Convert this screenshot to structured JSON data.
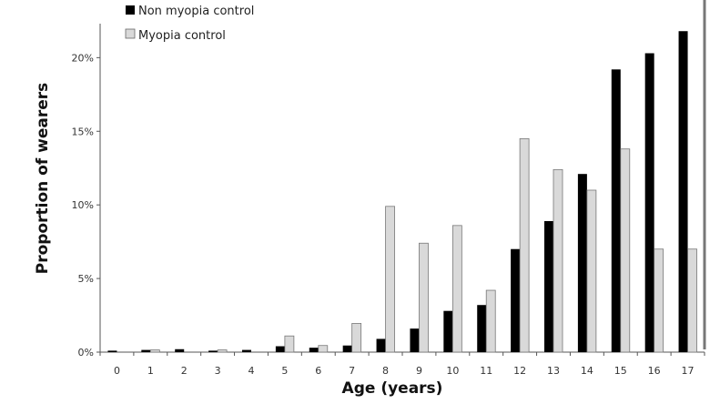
{
  "chart_data": {
    "type": "bar",
    "title": "",
    "xlabel": "Age (years)",
    "ylabel": "Proportion of wearers",
    "categories": [
      "0",
      "1",
      "2",
      "3",
      "4",
      "5",
      "6",
      "7",
      "8",
      "9",
      "10",
      "11",
      "12",
      "13",
      "14",
      "15",
      "16",
      "17"
    ],
    "ylim": [
      0,
      22
    ],
    "yticks": [
      0,
      5,
      10,
      15,
      20
    ],
    "ytick_labels": [
      "0%",
      "5%",
      "10%",
      "15%",
      "20%"
    ],
    "grid": false,
    "legend_position": "top-left",
    "series": [
      {
        "name": "Non myopia control",
        "color": "#000000",
        "values": [
          0.1,
          0.15,
          0.2,
          0.1,
          0.15,
          0.4,
          0.3,
          0.45,
          0.9,
          1.6,
          2.8,
          3.2,
          7.0,
          8.9,
          12.1,
          19.2,
          20.3,
          21.8
        ]
      },
      {
        "name": "Myopia control",
        "color": "#d9d9d9",
        "values": [
          0.0,
          0.15,
          0.0,
          0.15,
          0.0,
          1.1,
          0.45,
          1.95,
          9.9,
          7.4,
          8.6,
          4.2,
          14.5,
          12.4,
          11.0,
          13.8,
          7.0,
          7.0
        ]
      }
    ]
  }
}
